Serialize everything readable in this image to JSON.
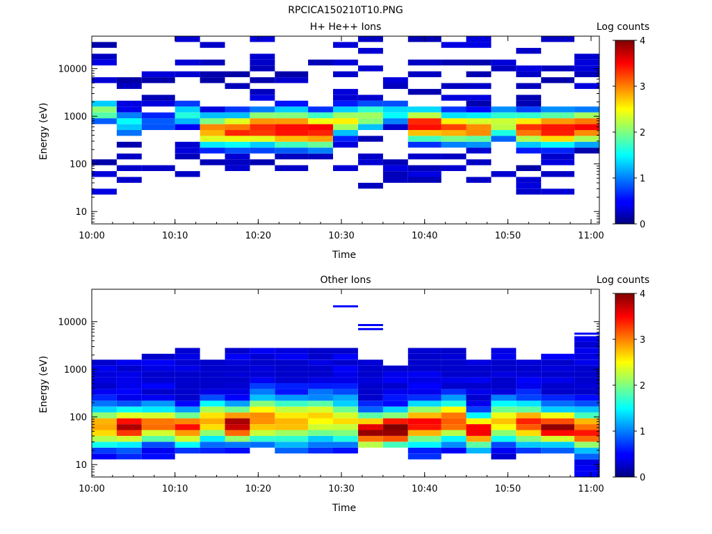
{
  "figure_title": "RPCICA150210T10.PNG",
  "chart_data": [
    {
      "type": "heatmap",
      "title": "H+ He++ Ions",
      "xlabel": "Time",
      "ylabel": "Energy (eV)",
      "colorbar_label": "Log counts",
      "yscale": "log",
      "ylim": [
        5.5,
        48000
      ],
      "xlim": [
        "10:00",
        "11:01"
      ],
      "x_ticks": [
        "10:00",
        "10:10",
        "10:20",
        "10:30",
        "10:40",
        "10:50",
        "11:00"
      ],
      "y_ticks": [
        "10",
        "100",
        "1000",
        "10000"
      ],
      "colorbar_range": [
        0,
        4
      ],
      "colorbar_ticks": [
        "0",
        "1",
        "2",
        "3",
        "4"
      ],
      "time_bins": [
        "10:00",
        "10:03",
        "10:06",
        "10:10",
        "10:13",
        "10:16",
        "10:19",
        "10:22",
        "10:26",
        "10:29",
        "10:32",
        "10:35",
        "10:38",
        "10:42",
        "10:45",
        "10:48",
        "10:51",
        "10:54",
        "10:58"
      ],
      "profiles": [
        {
          "core_energy": 1300,
          "core_level": 2.1,
          "core_width": 0.22,
          "noise_top_eV": 45000,
          "noise_bottom_eV": 22
        },
        {
          "core_energy": 700,
          "core_level": 1.4,
          "core_width": 0.3,
          "noise_top_eV": 9000,
          "noise_bottom_eV": 33
        },
        {
          "core_energy": 700,
          "core_level": 0.9,
          "core_width": 0.25,
          "noise_top_eV": 9000,
          "noise_bottom_eV": 60
        },
        {
          "core_energy": 1100,
          "core_level": 1.7,
          "core_width": 0.25,
          "noise_top_eV": 45000,
          "noise_bottom_eV": 45
        },
        {
          "core_energy": 500,
          "core_level": 3.0,
          "core_width": 0.32,
          "noise_top_eV": 45000,
          "noise_bottom_eV": 45
        },
        {
          "core_energy": 500,
          "core_level": 3.3,
          "core_width": 0.34,
          "noise_top_eV": 30000,
          "noise_bottom_eV": 40
        },
        {
          "core_energy": 550,
          "core_level": 3.5,
          "core_width": 0.36,
          "noise_top_eV": 45000,
          "noise_bottom_eV": 70
        },
        {
          "core_energy": 550,
          "core_level": 3.6,
          "core_width": 0.38,
          "noise_top_eV": 20000,
          "noise_bottom_eV": 50
        },
        {
          "core_energy": 500,
          "core_level": 3.5,
          "core_width": 0.36,
          "noise_top_eV": 45000,
          "noise_bottom_eV": 60
        },
        {
          "core_energy": 800,
          "core_level": 2.6,
          "core_width": 0.3,
          "noise_top_eV": 45000,
          "noise_bottom_eV": 50
        },
        {
          "core_energy": 1000,
          "core_level": 2.2,
          "core_width": 0.28,
          "noise_top_eV": 45000,
          "noise_bottom_eV": 32
        },
        {
          "core_energy": 1200,
          "core_level": 1.6,
          "core_width": 0.25,
          "noise_top_eV": 8000,
          "noise_bottom_eV": 38
        },
        {
          "core_energy": 650,
          "core_level": 3.6,
          "core_width": 0.32,
          "noise_top_eV": 45000,
          "noise_bottom_eV": 40
        },
        {
          "core_energy": 550,
          "core_level": 3.2,
          "core_width": 0.32,
          "noise_top_eV": 45000,
          "noise_bottom_eV": 35
        },
        {
          "core_energy": 550,
          "core_level": 3.1,
          "core_width": 0.32,
          "noise_top_eV": 45000,
          "noise_bottom_eV": 38
        },
        {
          "core_energy": 700,
          "core_level": 2.5,
          "core_width": 0.3,
          "noise_top_eV": 45000,
          "noise_bottom_eV": 40
        },
        {
          "core_energy": 550,
          "core_level": 3.3,
          "core_width": 0.34,
          "noise_top_eV": 45000,
          "noise_bottom_eV": 7
        },
        {
          "core_energy": 550,
          "core_level": 3.6,
          "core_width": 0.36,
          "noise_top_eV": 45000,
          "noise_bottom_eV": 14
        },
        {
          "core_energy": 600,
          "core_level": 3.5,
          "core_width": 0.34,
          "noise_top_eV": 45000,
          "noise_bottom_eV": 38
        }
      ]
    },
    {
      "type": "heatmap",
      "title": "Other Ions",
      "xlabel": "Time",
      "ylabel": "Energy (eV)",
      "colorbar_label": "Log counts",
      "yscale": "log",
      "ylim": [
        5.5,
        48000
      ],
      "xlim": [
        "10:00",
        "11:01"
      ],
      "x_ticks": [
        "10:00",
        "10:10",
        "10:20",
        "10:30",
        "10:40",
        "10:50",
        "11:00"
      ],
      "y_ticks": [
        "10",
        "100",
        "1000",
        "10000"
      ],
      "colorbar_range": [
        0,
        4
      ],
      "colorbar_ticks": [
        "0",
        "1",
        "2",
        "3",
        "4"
      ],
      "time_bins": [
        "10:00",
        "10:03",
        "10:06",
        "10:10",
        "10:13",
        "10:16",
        "10:19",
        "10:22",
        "10:26",
        "10:29",
        "10:32",
        "10:35",
        "10:38",
        "10:42",
        "10:45",
        "10:48",
        "10:51",
        "10:54",
        "10:58"
      ],
      "profiles": [
        {
          "core_energy": 60,
          "core_level": 2.6,
          "core_width": 0.4,
          "band_top_eV": 1800,
          "band_bottom_eV": 13,
          "line_eV": []
        },
        {
          "core_energy": 60,
          "core_level": 3.4,
          "core_width": 0.35,
          "band_top_eV": 1800,
          "band_bottom_eV": 13,
          "line_eV": []
        },
        {
          "core_energy": 70,
          "core_level": 2.9,
          "core_width": 0.35,
          "band_top_eV": 2300,
          "band_bottom_eV": 13,
          "line_eV": []
        },
        {
          "core_energy": 60,
          "core_level": 3.1,
          "core_width": 0.35,
          "band_top_eV": 2900,
          "band_bottom_eV": 17,
          "line_eV": []
        },
        {
          "core_energy": 80,
          "core_level": 2.7,
          "core_width": 0.4,
          "band_top_eV": 1500,
          "band_bottom_eV": 17,
          "line_eV": []
        },
        {
          "core_energy": 70,
          "core_level": 3.6,
          "core_width": 0.35,
          "band_top_eV": 2900,
          "band_bottom_eV": 17,
          "line_eV": []
        },
        {
          "core_energy": 90,
          "core_level": 2.8,
          "core_width": 0.45,
          "band_top_eV": 2900,
          "band_bottom_eV": 20,
          "line_eV": []
        },
        {
          "core_energy": 80,
          "core_level": 2.5,
          "core_width": 0.45,
          "band_top_eV": 2900,
          "band_bottom_eV": 17,
          "line_eV": []
        },
        {
          "core_energy": 90,
          "core_level": 2.3,
          "core_width": 0.45,
          "band_top_eV": 2900,
          "band_bottom_eV": 17,
          "line_eV": []
        },
        {
          "core_energy": 80,
          "core_level": 2.3,
          "core_width": 0.45,
          "band_top_eV": 2500,
          "band_bottom_eV": 17,
          "line_eV": [
            21000
          ]
        },
        {
          "core_energy": 50,
          "core_level": 3.6,
          "core_width": 0.35,
          "band_top_eV": 1500,
          "band_bottom_eV": 20,
          "line_eV": [
            8500,
            7000
          ]
        },
        {
          "core_energy": 55,
          "core_level": 3.7,
          "core_width": 0.35,
          "band_top_eV": 1200,
          "band_bottom_eV": 20,
          "line_eV": []
        },
        {
          "core_energy": 70,
          "core_level": 3.3,
          "core_width": 0.4,
          "band_top_eV": 2900,
          "band_bottom_eV": 13,
          "line_eV": []
        },
        {
          "core_energy": 80,
          "core_level": 3.0,
          "core_width": 0.4,
          "band_top_eV": 2900,
          "band_bottom_eV": 17,
          "line_eV": []
        },
        {
          "core_energy": 50,
          "core_level": 3.3,
          "core_width": 0.35,
          "band_top_eV": 1800,
          "band_bottom_eV": 17,
          "line_eV": []
        },
        {
          "core_energy": 80,
          "core_level": 2.5,
          "core_width": 0.4,
          "band_top_eV": 2900,
          "band_bottom_eV": 13,
          "line_eV": []
        },
        {
          "core_energy": 70,
          "core_level": 3.0,
          "core_width": 0.4,
          "band_top_eV": 1800,
          "band_bottom_eV": 17,
          "line_eV": []
        },
        {
          "core_energy": 60,
          "core_level": 3.5,
          "core_width": 0.35,
          "band_top_eV": 2300,
          "band_bottom_eV": 17,
          "line_eV": []
        },
        {
          "core_energy": 50,
          "core_level": 3.1,
          "core_width": 0.4,
          "band_top_eV": 5600,
          "band_bottom_eV": 6,
          "line_eV": [
            5600
          ]
        }
      ]
    }
  ]
}
